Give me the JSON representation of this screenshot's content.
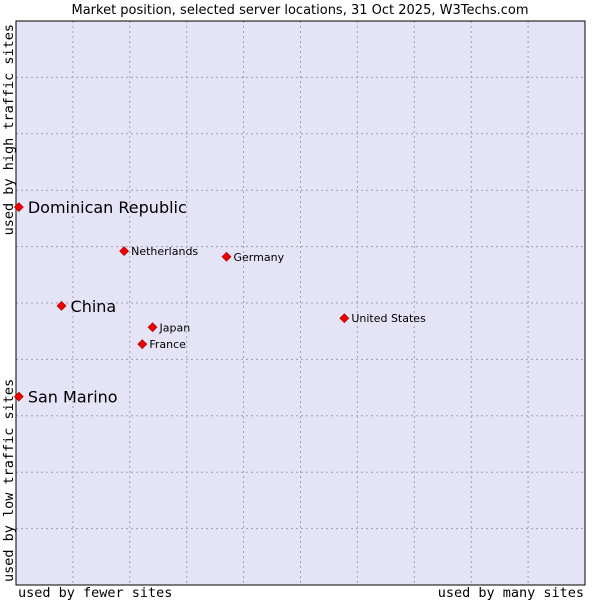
{
  "chart_data": {
    "type": "scatter",
    "title": "Market position, selected server locations, 31 Oct 2025, W3Techs.com",
    "xlabel_left": "used by fewer sites",
    "xlabel_right": "used by many sites",
    "ylabel_bottom": "used by low traffic sites",
    "ylabel_top": "used by high traffic sites",
    "xlim": [
      0,
      100
    ],
    "ylim": [
      0,
      100
    ],
    "grid": true,
    "colors": {
      "plot_bg": "#e4e4f6",
      "grid": "#a0a0b4",
      "marker": "#ee0000",
      "frame": "#000000"
    },
    "points": [
      {
        "name": "Dominican Republic",
        "x": 0.5,
        "y": 67.0,
        "size": "large"
      },
      {
        "name": "Netherlands",
        "x": 19.0,
        "y": 59.2,
        "size": "small"
      },
      {
        "name": "Germany",
        "x": 37.0,
        "y": 58.2,
        "size": "small"
      },
      {
        "name": "China",
        "x": 8.0,
        "y": 49.5,
        "size": "large"
      },
      {
        "name": "United States",
        "x": 57.7,
        "y": 47.3,
        "size": "small"
      },
      {
        "name": "Japan",
        "x": 24.0,
        "y": 45.7,
        "size": "small"
      },
      {
        "name": "France",
        "x": 22.2,
        "y": 42.7,
        "size": "small"
      },
      {
        "name": "San Marino",
        "x": 0.5,
        "y": 33.4,
        "size": "large"
      }
    ]
  }
}
